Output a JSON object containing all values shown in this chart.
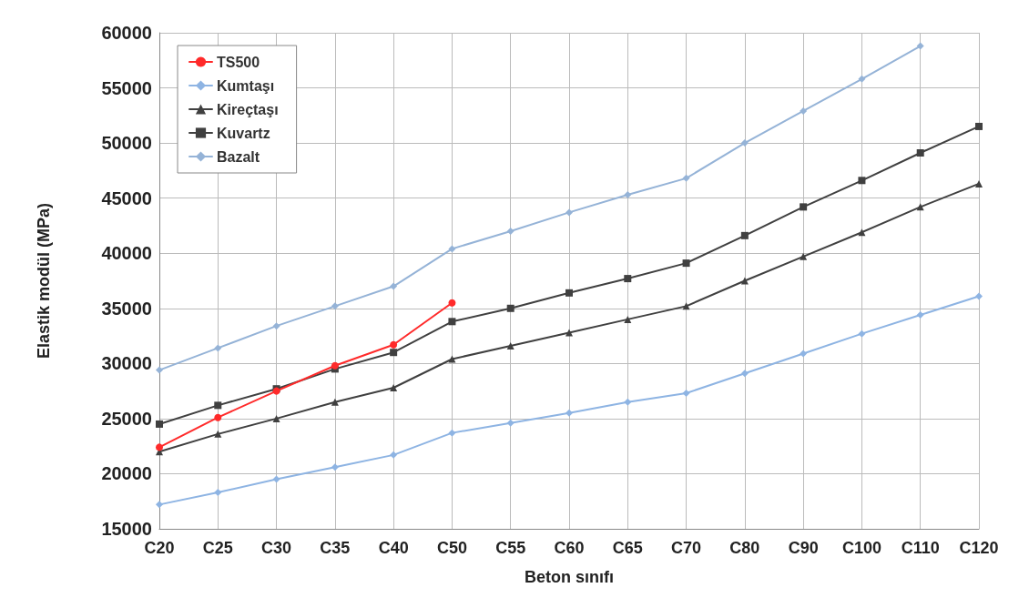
{
  "chart_data": {
    "type": "line",
    "xlabel": "Beton sınıfı",
    "ylabel": "Elastik modül (MPa)",
    "categories": [
      "C20",
      "C25",
      "C30",
      "C35",
      "C40",
      "C50",
      "C55",
      "C60",
      "C65",
      "C70",
      "C80",
      "C90",
      "C100",
      "C110",
      "C120"
    ],
    "series": [
      {
        "name": "TS500",
        "color": "#ff2a2a",
        "marker": "circle",
        "values": [
          22400,
          25100,
          27500,
          29800,
          31700,
          35500,
          null,
          null,
          null,
          null,
          null,
          null,
          null,
          null,
          null
        ]
      },
      {
        "name": "Kumtaşı",
        "color": "#8eb4e3",
        "marker": "diamond",
        "values": [
          17200,
          18300,
          19500,
          20600,
          21700,
          23700,
          24600,
          25500,
          26500,
          27300,
          29100,
          30900,
          32700,
          34400,
          36100
        ]
      },
      {
        "name": "Kireçtaşı",
        "color": "#404040",
        "marker": "triangle",
        "values": [
          22000,
          23600,
          25000,
          26500,
          27800,
          30400,
          31600,
          32800,
          34000,
          35200,
          37500,
          39700,
          41900,
          44200,
          46300
        ]
      },
      {
        "name": "Kuvartz",
        "color": "#404040",
        "marker": "square",
        "values": [
          24500,
          26200,
          27700,
          29500,
          31000,
          33800,
          35000,
          36400,
          37700,
          39100,
          41600,
          44200,
          46600,
          49100,
          51500
        ]
      },
      {
        "name": "Bazalt",
        "color": "#95b3d7",
        "marker": "diamond",
        "values": [
          29400,
          31400,
          33400,
          35200,
          37000,
          40400,
          42000,
          43700,
          45300,
          46800,
          50000,
          52900,
          55800,
          58800,
          null
        ]
      }
    ],
    "ylim": [
      15000,
      60000
    ],
    "yticks": [
      15000,
      20000,
      25000,
      30000,
      35000,
      40000,
      45000,
      50000,
      55000,
      60000
    ],
    "grid": true,
    "legend": "top left",
    "line_style": "solid"
  }
}
